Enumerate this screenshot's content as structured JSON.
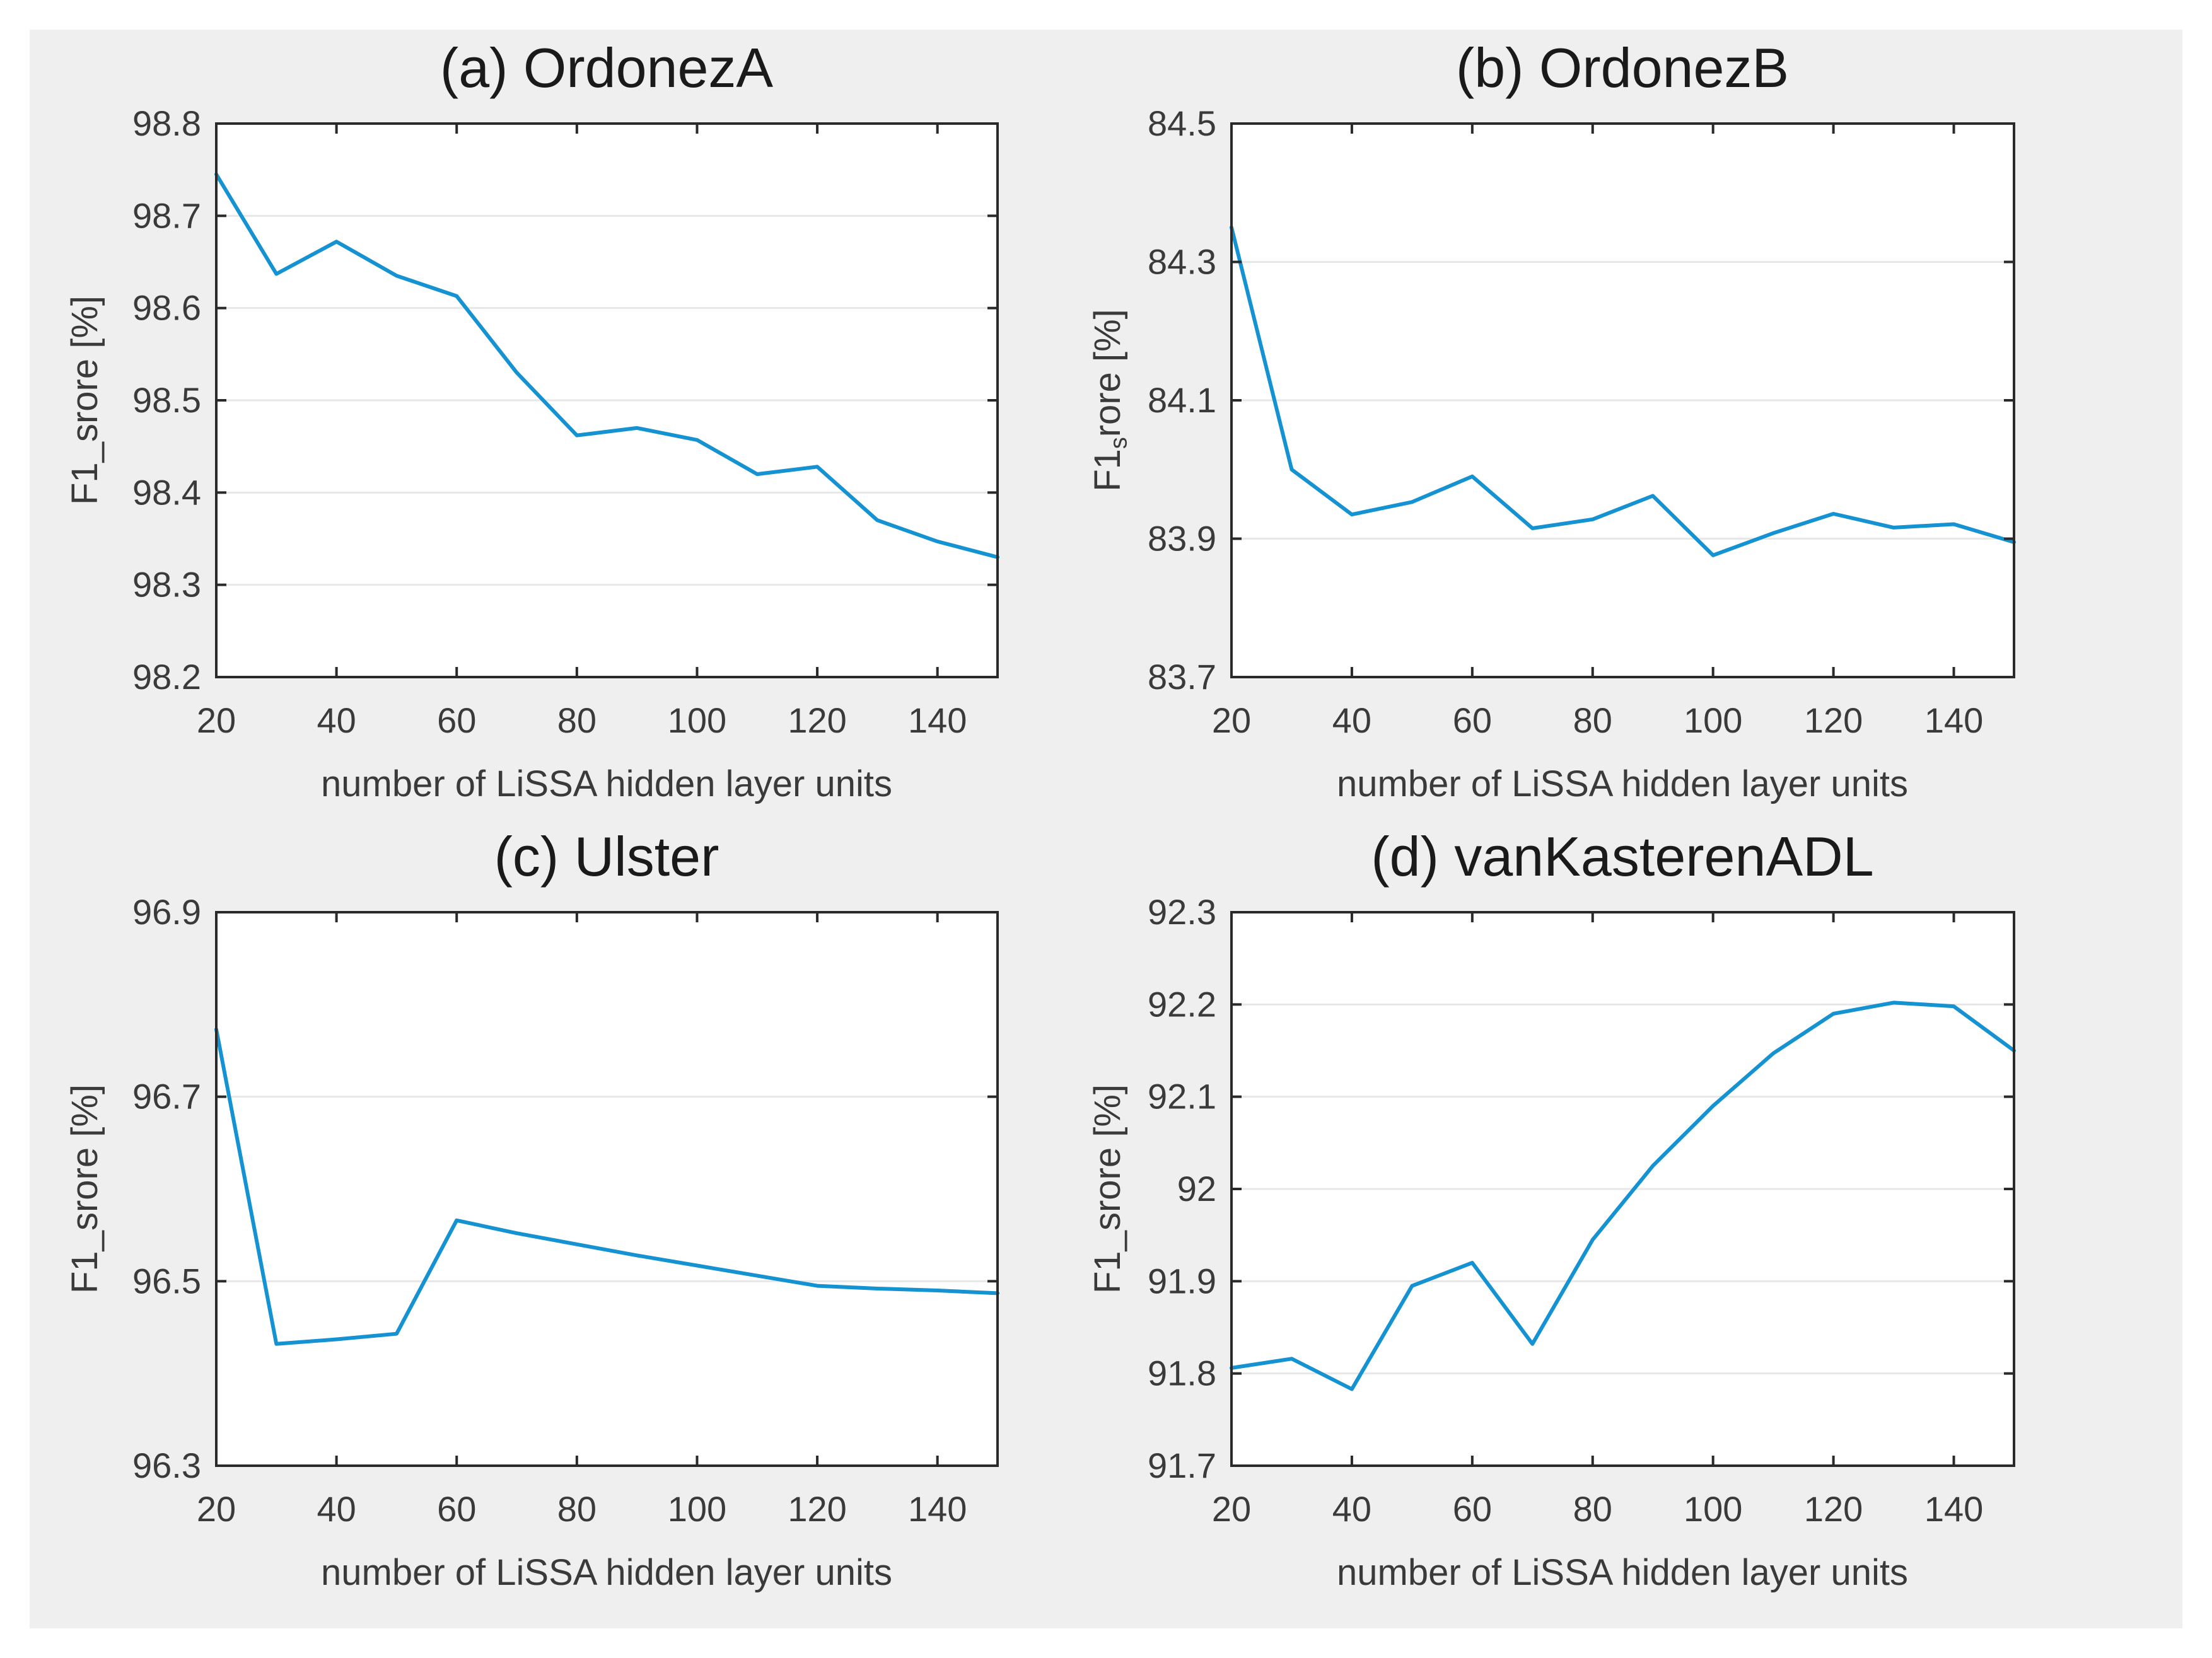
{
  "figure": {
    "outer_background": "#ffffff",
    "panel_background": "#efefef",
    "plot_background": "#ffffff",
    "line_color": "#1492d2",
    "grid_color": "#e7e7e7",
    "axis_color": "#2a2a2a",
    "tick_label_color": "#3a3a3a",
    "title_color": "#1a1a1a"
  },
  "chart_data": [
    {
      "id": "a",
      "type": "line",
      "title": "(a) OrdonezA",
      "xlabel": "number of LiSSA hidden layer units",
      "ylabel": "F1_srore [%]",
      "ylabel_parts": [
        {
          "text": "F1_srore [%]",
          "sub": false
        }
      ],
      "x": [
        20,
        30,
        40,
        50,
        60,
        70,
        80,
        90,
        100,
        110,
        120,
        130,
        140,
        150
      ],
      "y": [
        98.745,
        98.637,
        98.672,
        98.635,
        98.613,
        98.53,
        98.462,
        98.47,
        98.457,
        98.42,
        98.428,
        98.37,
        98.347,
        98.33
      ],
      "xlim": [
        20,
        150
      ],
      "ylim": [
        98.2,
        98.8
      ],
      "xticks": [
        20,
        40,
        60,
        80,
        100,
        120,
        140
      ],
      "xtick_labels": [
        "20",
        "40",
        "60",
        "80",
        "100",
        "120",
        "140"
      ],
      "yticks": [
        98.2,
        98.3,
        98.4,
        98.5,
        98.6,
        98.7,
        98.8
      ],
      "ytick_labels": [
        "98.2",
        "98.3",
        "98.4",
        "98.5",
        "98.6",
        "98.7",
        "98.8"
      ],
      "grid": "horizontal",
      "legend": "none"
    },
    {
      "id": "b",
      "type": "line",
      "title": "(b) OrdonezB",
      "xlabel": "number of LiSSA hidden layer units",
      "ylabel": "F1srore [%]",
      "ylabel_parts": [
        {
          "text": "F1",
          "sub": false
        },
        {
          "text": "s",
          "sub": true
        },
        {
          "text": "rore [%]",
          "sub": false
        }
      ],
      "x": [
        20,
        30,
        40,
        50,
        60,
        70,
        80,
        90,
        100,
        110,
        120,
        130,
        140,
        150
      ],
      "y": [
        84.35,
        84.0,
        83.935,
        83.953,
        83.99,
        83.915,
        83.928,
        83.962,
        83.876,
        83.908,
        83.936,
        83.916,
        83.921,
        83.895
      ],
      "xlim": [
        20,
        150
      ],
      "ylim": [
        83.7,
        84.5
      ],
      "xticks": [
        20,
        40,
        60,
        80,
        100,
        120,
        140
      ],
      "xtick_labels": [
        "20",
        "40",
        "60",
        "80",
        "100",
        "120",
        "140"
      ],
      "yticks": [
        83.7,
        83.9,
        84.1,
        84.3,
        84.5
      ],
      "ytick_labels": [
        "83.7",
        "83.9",
        "84.1",
        "84.3",
        "84.5"
      ],
      "grid": "horizontal",
      "legend": "none"
    },
    {
      "id": "c",
      "type": "line",
      "title": "(c) Ulster",
      "xlabel": "number of LiSSA hidden layer units",
      "ylabel": "F1_srore [%]",
      "ylabel_parts": [
        {
          "text": "F1_srore [%]",
          "sub": false
        }
      ],
      "x": [
        20,
        30,
        40,
        50,
        60,
        70,
        80,
        90,
        100,
        110,
        120,
        130,
        140,
        150
      ],
      "y": [
        96.773,
        96.432,
        96.437,
        96.443,
        96.566,
        96.552,
        96.54,
        96.528,
        96.517,
        96.506,
        96.495,
        96.492,
        96.49,
        96.487
      ],
      "xlim": [
        20,
        150
      ],
      "ylim": [
        96.3,
        96.9
      ],
      "xticks": [
        20,
        40,
        60,
        80,
        100,
        120,
        140
      ],
      "xtick_labels": [
        "20",
        "40",
        "60",
        "80",
        "100",
        "120",
        "140"
      ],
      "yticks": [
        96.3,
        96.5,
        96.7,
        96.9
      ],
      "ytick_labels": [
        "96.3",
        "96.5",
        "96.7",
        "96.9"
      ],
      "grid": "horizontal",
      "legend": "none"
    },
    {
      "id": "d",
      "type": "line",
      "title": "(d) vanKasterenADL",
      "xlabel": "number of LiSSA hidden layer units",
      "ylabel": "F1_srore [%]",
      "ylabel_parts": [
        {
          "text": "F1_srore [%]",
          "sub": false
        }
      ],
      "x": [
        20,
        30,
        40,
        50,
        60,
        70,
        80,
        90,
        100,
        110,
        120,
        130,
        140,
        150
      ],
      "y": [
        91.806,
        91.816,
        91.783,
        91.895,
        91.92,
        91.832,
        91.945,
        92.025,
        92.09,
        92.147,
        92.19,
        92.202,
        92.198,
        92.15
      ],
      "xlim": [
        20,
        150
      ],
      "ylim": [
        91.7,
        92.3
      ],
      "xticks": [
        20,
        40,
        60,
        80,
        100,
        120,
        140
      ],
      "xtick_labels": [
        "20",
        "40",
        "60",
        "80",
        "100",
        "120",
        "140"
      ],
      "yticks": [
        91.7,
        91.8,
        91.9,
        92.0,
        92.1,
        92.2,
        92.3
      ],
      "ytick_labels": [
        "91.7",
        "91.8",
        "91.9",
        "92",
        "92.1",
        "92.2",
        "92.3"
      ],
      "grid": "horizontal",
      "legend": "none"
    }
  ]
}
